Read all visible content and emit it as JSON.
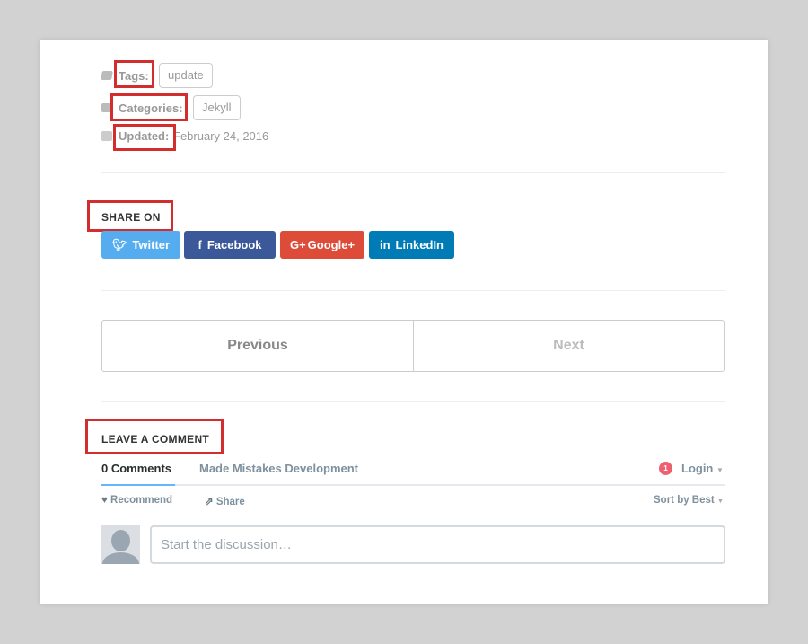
{
  "meta": {
    "tags_label": "Tags:",
    "tags": [
      "update"
    ],
    "categories_label": "Categories:",
    "categories": [
      "Jekyll"
    ],
    "updated_label": "Updated:",
    "updated_value": "February 24, 2016"
  },
  "share": {
    "heading": "SHARE ON",
    "buttons": [
      {
        "label": "Twitter",
        "icon": "twitter-icon",
        "color": "#55acee"
      },
      {
        "label": "Facebook",
        "icon": "facebook-icon",
        "color": "#3b5998"
      },
      {
        "label": "Google+",
        "icon": "google-plus-icon",
        "color": "#dd4b39"
      },
      {
        "label": "LinkedIn",
        "icon": "linkedin-icon",
        "color": "#007bb6"
      }
    ]
  },
  "pager": {
    "previous": "Previous",
    "next": "Next"
  },
  "comments": {
    "heading": "LEAVE A COMMENT",
    "tab_comments": "0 Comments",
    "tab_site": "Made Mistakes Development",
    "notification_count": "1",
    "login": "Login",
    "recommend": "Recommend",
    "share": "Share",
    "sort": "Sort by Best",
    "placeholder": "Start the discussion…"
  }
}
